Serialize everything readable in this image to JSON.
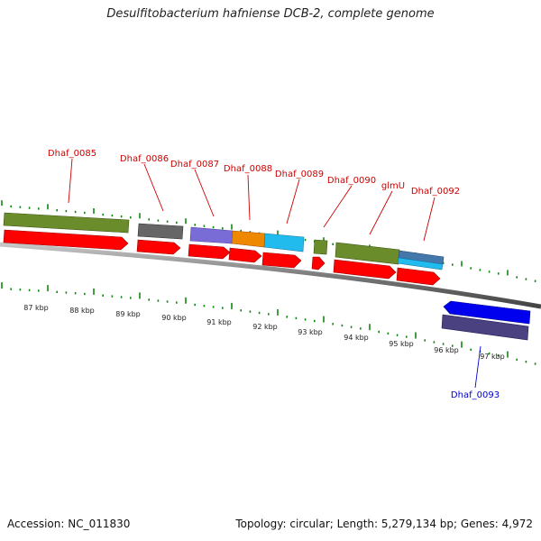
{
  "title": "Desulfitobacterium hafniense DCB-2, complete genome",
  "footer": {
    "accession": "Accession: NC_011830",
    "summary": "Topology: circular; Length: 5,279,134 bp; Genes: 4,972"
  },
  "tick_labels": [
    "87 kbp",
    "88 kbp",
    "89 kbp",
    "90 kbp",
    "91 kbp",
    "92 kbp",
    "93 kbp",
    "94 kbp",
    "95 kbp",
    "96 kbp",
    "97 kbp"
  ],
  "gene_labels": [
    {
      "name": "Dhaf_0085",
      "color": "#cc0000"
    },
    {
      "name": "Dhaf_0086",
      "color": "#cc0000"
    },
    {
      "name": "Dhaf_0087",
      "color": "#cc0000"
    },
    {
      "name": "Dhaf_0088",
      "color": "#cc0000"
    },
    {
      "name": "Dhaf_0089",
      "color": "#cc0000"
    },
    {
      "name": "Dhaf_0090",
      "color": "#cc0000"
    },
    {
      "name": "glmU",
      "color": "#cc0000"
    },
    {
      "name": "Dhaf_0092",
      "color": "#cc0000"
    },
    {
      "name": "Dhaf_0093",
      "color": "#0000cc"
    }
  ],
  "colors": {
    "forward_strand": "#ff0000",
    "reverse_strand": "#0000ee",
    "backbone": "#777777",
    "gc_ticks": "#118811",
    "function_green": "#6b8c2a",
    "function_gray": "#666666",
    "function_purple": "#7a6cd6",
    "function_orange": "#ee8800",
    "function_cyan": "#22bbee",
    "function_steel": "#4477aa",
    "function_darkpurple": "#4a4280"
  }
}
